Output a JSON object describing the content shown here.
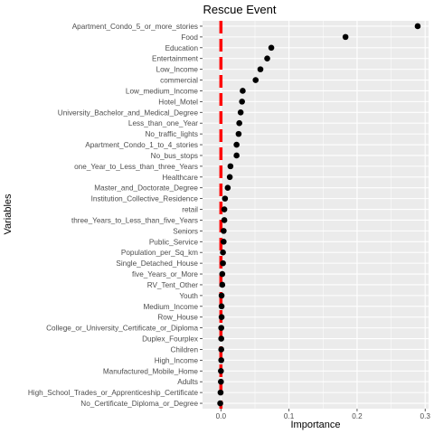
{
  "chart_data": {
    "type": "scatter",
    "title": "Rescue Event",
    "xlabel": "Importance",
    "ylabel": "Variables",
    "xlim": [
      -0.027,
      0.305
    ],
    "x_ticks": [
      0.0,
      0.1,
      0.2,
      0.3
    ],
    "x_tick_labels": [
      "0.0",
      "0.1",
      "0.2",
      "0.3"
    ],
    "grid": true,
    "colors": {
      "panel_background": "#ebebeb",
      "grid_major": "#ffffff",
      "point": "#000000",
      "reference_line": "#ff0000",
      "tick_label": "#4d4d4d"
    },
    "reference_line": {
      "x": 0.0,
      "style": "dashed"
    },
    "categories": [
      "Apartment_Condo_5_or_more_stories",
      "Food",
      "Education",
      "Entertainment",
      "Low_Income",
      "commercial",
      "Low_medium_Income",
      "Hotel_Motel",
      "University_Bachelor_and_Medical_Degree",
      "Less_than_one_Year",
      "No_traffic_lights",
      "Apartment_Condo_1_to_4_stories",
      "No_bus_stops",
      "one_Year_to_Less_than_three_Years",
      "Healthcare",
      "Master_and_Doctorate_Degree",
      "Institution_Collective_Residence",
      "retail",
      "three_Years_to_Less_than_five_Years",
      "Seniors",
      "Public_Service",
      "Population_per_Sq_km",
      "Single_Detached_House",
      "five_Years_or_More",
      "RV_Tent_Other",
      "Youth",
      "Medium_Income",
      "Row_House",
      "College_or_University_Certificate_or_Diploma",
      "Duplex_Fourplex",
      "Children",
      "High_Income",
      "Manufactured_Mobile_Home",
      "Adults",
      "High_School_Trades_or_Apprenticeship_Certificate",
      "No_Certificate_Diploma_or_Degree"
    ],
    "values": [
      0.289,
      0.183,
      0.074,
      0.068,
      0.058,
      0.051,
      0.032,
      0.031,
      0.029,
      0.027,
      0.026,
      0.023,
      0.023,
      0.014,
      0.013,
      0.01,
      0.006,
      0.005,
      0.005,
      0.004,
      0.004,
      0.003,
      0.003,
      0.002,
      0.002,
      0.001,
      0.001,
      0.001,
      0.0005,
      0.0005,
      0.0005,
      0.0005,
      0.0,
      0.0,
      -0.0005,
      -0.001
    ]
  }
}
